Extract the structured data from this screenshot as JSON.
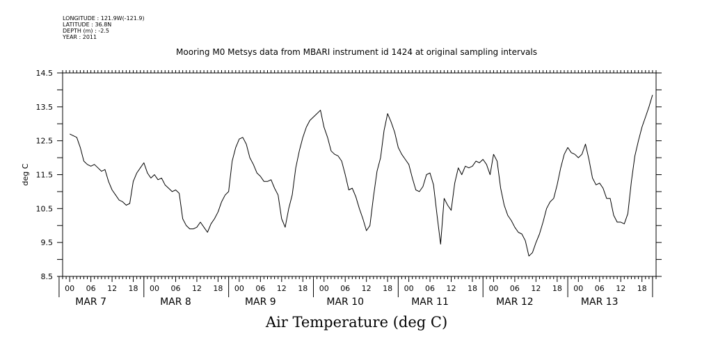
{
  "metadata": {
    "longitude": "LONGITUDE : 121.9W(-121.9)",
    "latitude": "LATITUDE : 36.8N",
    "depth": "DEPTH (m) : -2.5",
    "year": "YEAR : 2011"
  },
  "chart_data": {
    "type": "line",
    "title": "Mooring M0 Metsys data from MBARI instrument id 1424 at original sampling intervals",
    "xlabel": "Air Temperature (deg C)",
    "ylabel": "deg C",
    "ylim": [
      8.5,
      14.5
    ],
    "yticks": [
      "14.5",
      "13.5",
      "12.5",
      "11.5",
      "10.5",
      "9.5",
      "8.5"
    ],
    "xlim_hours": [
      -2,
      166
    ],
    "hour_ticks": [
      "00",
      "06",
      "12",
      "18",
      "00",
      "06",
      "12",
      "18",
      "00",
      "06",
      "12",
      "18",
      "00",
      "06",
      "12",
      "18",
      "00",
      "06",
      "12",
      "18",
      "00",
      "06",
      "12",
      "18",
      "00",
      "06",
      "12",
      "18"
    ],
    "days": [
      "MAR  7",
      "MAR  8",
      "MAR  9",
      "MAR  10",
      "MAR 11",
      "MAR 12",
      "MAR 13"
    ],
    "grid": false,
    "series": [
      {
        "x_hours": [
          0,
          2,
          3,
          4,
          5,
          6,
          7,
          8,
          9,
          10,
          11,
          12,
          13,
          14,
          15,
          16,
          17,
          18,
          19,
          20,
          21,
          22,
          23,
          24,
          25,
          26,
          27,
          28,
          29,
          30,
          31,
          32,
          33,
          34,
          35,
          36,
          37,
          38,
          39,
          40,
          41,
          42,
          43,
          44,
          45,
          46,
          47,
          48,
          49,
          50,
          51,
          52,
          53,
          54,
          55,
          56,
          57,
          58,
          59,
          60,
          61,
          62,
          63,
          64,
          65,
          66,
          67,
          68,
          69,
          70,
          71,
          72,
          73,
          74,
          75,
          76,
          77,
          78,
          79,
          80,
          81,
          82,
          83,
          84,
          85,
          86,
          87,
          88,
          89,
          90,
          91,
          92,
          93,
          94,
          95,
          96,
          97,
          98,
          99,
          100,
          101,
          102,
          103,
          104,
          105,
          106,
          107,
          108,
          109,
          110,
          111,
          112,
          113,
          114,
          115,
          116,
          117,
          118,
          119,
          120,
          121,
          122,
          123,
          124,
          125,
          126,
          127,
          128,
          129,
          130,
          131,
          132,
          133,
          134,
          135,
          136,
          137,
          138,
          139,
          140,
          141,
          142,
          143,
          144,
          145,
          146,
          147,
          148,
          149,
          150,
          151,
          152,
          153,
          154,
          155,
          156,
          157,
          158,
          159,
          160,
          161,
          162,
          163,
          164,
          165
        ],
        "values": [
          12.7,
          12.6,
          12.3,
          11.9,
          11.8,
          11.75,
          11.8,
          11.7,
          11.6,
          11.65,
          11.3,
          11.05,
          10.9,
          10.75,
          10.7,
          10.6,
          10.65,
          11.3,
          11.55,
          11.7,
          11.85,
          11.55,
          11.4,
          11.5,
          11.35,
          11.4,
          11.2,
          11.1,
          11.0,
          11.05,
          10.95,
          10.2,
          10.0,
          9.9,
          9.9,
          9.95,
          10.1,
          9.95,
          9.8,
          10.05,
          10.2,
          10.4,
          10.7,
          10.9,
          11.0,
          11.9,
          12.3,
          12.55,
          12.6,
          12.4,
          12.0,
          11.8,
          11.55,
          11.45,
          11.3,
          11.3,
          11.35,
          11.1,
          10.9,
          10.2,
          9.95,
          10.5,
          10.9,
          11.7,
          12.2,
          12.6,
          12.9,
          13.1,
          13.2,
          13.3,
          13.4,
          12.9,
          12.6,
          12.2,
          12.1,
          12.05,
          11.9,
          11.5,
          11.05,
          11.1,
          10.85,
          10.5,
          10.2,
          9.85,
          10.0,
          10.85,
          11.6,
          12.0,
          12.8,
          13.3,
          13.05,
          12.75,
          12.3,
          12.1,
          11.95,
          11.8,
          11.4,
          11.05,
          11.0,
          11.15,
          11.5,
          11.55,
          11.2,
          10.3,
          9.45,
          10.8,
          10.6,
          10.45,
          11.25,
          11.7,
          11.5,
          11.75,
          11.7,
          11.75,
          11.9,
          11.85,
          11.95,
          11.8,
          11.5,
          12.1,
          11.9,
          11.1,
          10.6,
          10.3,
          10.15,
          9.95,
          9.8,
          9.75,
          9.55,
          9.1,
          9.2,
          9.5,
          9.75,
          10.1,
          10.5,
          10.7,
          10.8,
          11.2,
          11.7,
          12.1,
          12.3,
          12.15,
          12.1,
          12.0,
          12.1,
          12.4,
          11.95,
          11.4,
          11.2,
          11.25,
          11.1,
          10.8,
          10.8,
          10.3,
          10.1,
          10.1,
          10.05,
          10.35,
          11.3,
          12.05,
          12.5,
          12.9,
          13.2,
          13.5,
          13.85
        ]
      }
    ]
  }
}
